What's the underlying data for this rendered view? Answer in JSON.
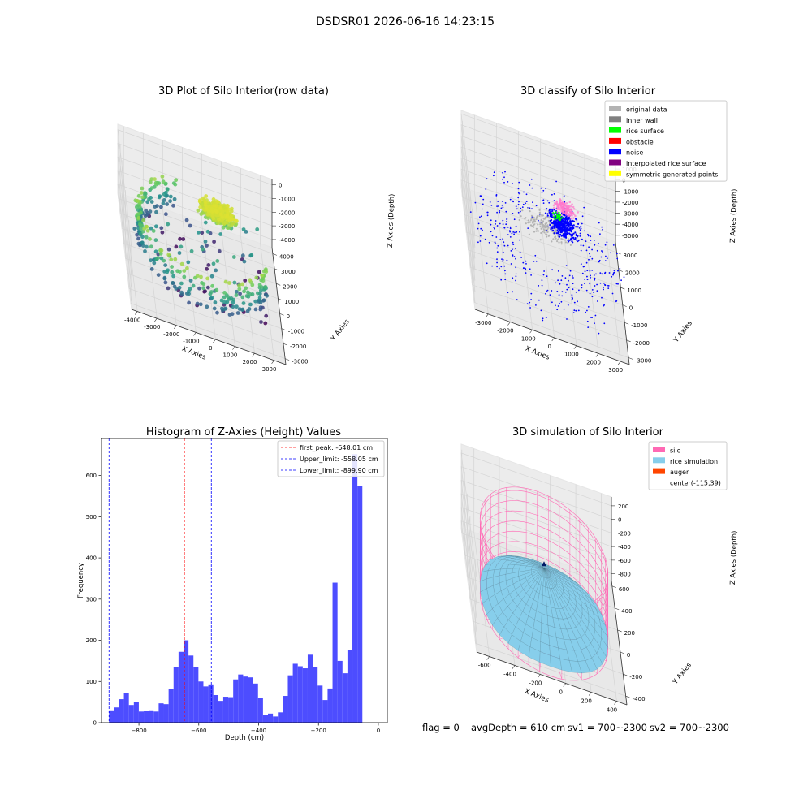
{
  "suptitle": "DSDSR01 2026-06-16 14:23:15",
  "status_line": {
    "flag": "flag = 0",
    "avg_depth": "avgDepth = 610 cm",
    "sv1": "sv1 = 700~2300",
    "sv2": "sv2 = 700~2300"
  },
  "colors": {
    "original_data": "#b3b3b3",
    "inner_wall": "#808080",
    "rice_surface": "#00ff00",
    "obstacle": "#ff0000",
    "noise": "#0000ff",
    "interpolated_rice_surface": "#800080",
    "symmetric_generated_points": "#ffff00",
    "silo": "#ff69b4",
    "rice_simulation": "#87ceeb",
    "auger": "#ff4500",
    "histogram_bar": "#4d4dff",
    "first_peak_line": "#ff0000",
    "limit_line": "#0000ff"
  },
  "chart_data": [
    {
      "type": "scatter",
      "projection": "3d",
      "title": "3D Plot of Silo Interior(row data)",
      "xlabel": "X Axies",
      "ylabel": "Y Axies",
      "zlabel": "Z Axies (Depth)",
      "x_ticks": [
        -4000,
        -3000,
        -2000,
        -1000,
        0,
        1000,
        2000,
        3000
      ],
      "y_ticks": [
        -3000,
        -2000,
        -1000,
        0,
        1000,
        2000,
        3000,
        4000
      ],
      "z_ticks": [
        0,
        -1000,
        -2000,
        -3000,
        -4000
      ],
      "xlim": [
        -4300,
        3600
      ],
      "ylim": [
        -3400,
        4400
      ],
      "zlim": [
        -4600,
        400
      ],
      "colormap": "viridis (by depth)",
      "grid": true
    },
    {
      "type": "scatter",
      "projection": "3d",
      "title": "3D classify of Silo Interior",
      "xlabel": "X Axies",
      "ylabel": "Y Axies",
      "zlabel": "Z Axies (Depth)",
      "x_ticks": [
        -3000,
        -2000,
        -1000,
        0,
        1000,
        2000,
        3000
      ],
      "y_ticks": [
        -3000,
        -2000,
        -1000,
        0,
        1000,
        2000,
        3000
      ],
      "z_ticks": [
        1000,
        0,
        -1000,
        -2000,
        -3000,
        -4000,
        -5000
      ],
      "xlim": [
        -3600,
        3400
      ],
      "ylim": [
        -3400,
        3600
      ],
      "zlim": [
        -5600,
        1300
      ],
      "legend_position": "top-right",
      "legend": [
        {
          "label": "original data",
          "color_key": "original_data"
        },
        {
          "label": "inner wall",
          "color_key": "inner_wall"
        },
        {
          "label": "rice surface",
          "color_key": "rice_surface"
        },
        {
          "label": "obstacle",
          "color_key": "obstacle"
        },
        {
          "label": "noise",
          "color_key": "noise"
        },
        {
          "label": "interpolated rice surface",
          "color_key": "interpolated_rice_surface"
        },
        {
          "label": "symmetric generated points",
          "color_key": "symmetric_generated_points"
        }
      ],
      "grid": true
    },
    {
      "type": "bar",
      "title": "Histogram of Z-Axies (Height) Values",
      "xlabel": "Depth (cm)",
      "ylabel": "Frequency",
      "x_ticks": [
        -800,
        -600,
        -400,
        -200,
        0
      ],
      "y_ticks": [
        0,
        100,
        200,
        300,
        400,
        500,
        600
      ],
      "xlim": [
        -925,
        30
      ],
      "ylim": [
        0,
        690
      ],
      "bin_start": -900,
      "bin_width": 16.6,
      "values": [
        30,
        37,
        57,
        72,
        43,
        50,
        27,
        28,
        30,
        27,
        47,
        45,
        82,
        135,
        172,
        200,
        163,
        135,
        100,
        88,
        93,
        67,
        53,
        63,
        62,
        105,
        117,
        112,
        110,
        95,
        60,
        18,
        22,
        15,
        25,
        65,
        115,
        143,
        137,
        132,
        165,
        135,
        90,
        55,
        83,
        340,
        150,
        120,
        177,
        652,
        575
      ],
      "vlines": [
        {
          "label": "first_peak: -648.01 cm",
          "x": -648.01,
          "color_key": "first_peak_line"
        },
        {
          "label": "Upper_limit: -558.05 cm",
          "x": -558.05,
          "color_key": "limit_line"
        },
        {
          "label": "Lower_limit: -899.90 cm",
          "x": -899.9,
          "color_key": "limit_line"
        }
      ],
      "legend_position": "top-right"
    },
    {
      "type": "surface",
      "projection": "3d",
      "title": "3D simulation of Silo Interior",
      "xlabel": "X Axies",
      "ylabel": "Y Axies",
      "zlabel": "Z Axies (Depth)",
      "x_ticks": [
        -600,
        -400,
        -200,
        0,
        200,
        400
      ],
      "y_ticks": [
        -400,
        -200,
        0,
        200,
        400,
        600
      ],
      "z_ticks": [
        200,
        0,
        -200,
        -400,
        -600,
        -800
      ],
      "xlim": [
        -700,
        480
      ],
      "ylim": [
        -480,
        650
      ],
      "zlim": [
        -900,
        330
      ],
      "legend_position": "top-right",
      "legend": [
        {
          "label": "silo",
          "color_key": "silo",
          "swatch": true
        },
        {
          "label": "rice simulation",
          "color_key": "rice_simulation",
          "swatch": true
        },
        {
          "label": "auger",
          "color_key": "auger",
          "swatch": true
        },
        {
          "label": "center(-115,39)",
          "color_key": "",
          "swatch": false
        }
      ],
      "grid": true
    }
  ]
}
